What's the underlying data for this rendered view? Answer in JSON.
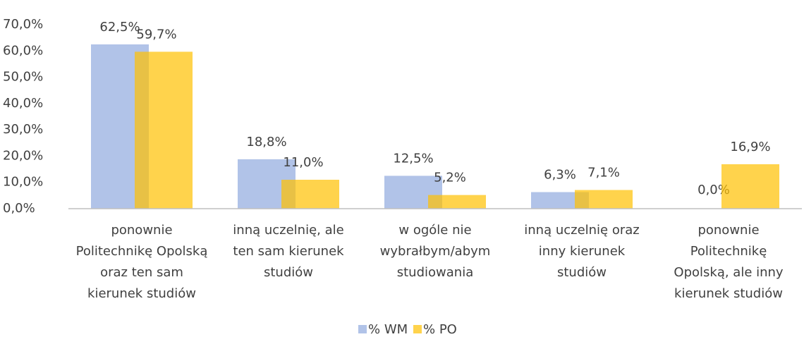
{
  "chart_data": {
    "type": "bar",
    "categories": [
      "ponownie Politechnikę Opolską oraz ten sam kierunek studiów",
      "inną uczelnię, ale ten sam kierunek studiów",
      "w ogóle nie wybrałbym/abym studiowania",
      "inną uczelnię oraz inny kierunek studiów",
      "ponownie Politechnikę Opolską, ale inny kierunek studiów"
    ],
    "series": [
      {
        "name": "% WM",
        "color": "#a9bde6",
        "values": [
          62.5,
          18.8,
          12.5,
          6.3,
          0.0
        ],
        "value_labels": [
          "62,5%",
          "18,8%",
          "12,5%",
          "6,3%",
          "0,0%"
        ]
      },
      {
        "name": "% PO",
        "color": "#ffc000",
        "values": [
          59.7,
          11.0,
          5.2,
          7.1,
          16.9
        ],
        "value_labels": [
          "59,7%",
          "11,0%",
          "5,2%",
          "7,1%",
          "16,9%"
        ]
      }
    ],
    "ylim": [
      0,
      70
    ],
    "yticks": [
      {
        "value": 0,
        "label": "0,0%"
      },
      {
        "value": 10,
        "label": "10,0%"
      },
      {
        "value": 20,
        "label": "20,0%"
      },
      {
        "value": 30,
        "label": "30,0%"
      },
      {
        "value": 40,
        "label": "40,0%"
      },
      {
        "value": 50,
        "label": "50,0%"
      },
      {
        "value": 60,
        "label": "60,0%"
      },
      {
        "value": 70,
        "label": "70,0%"
      }
    ],
    "legend": "bottom"
  }
}
